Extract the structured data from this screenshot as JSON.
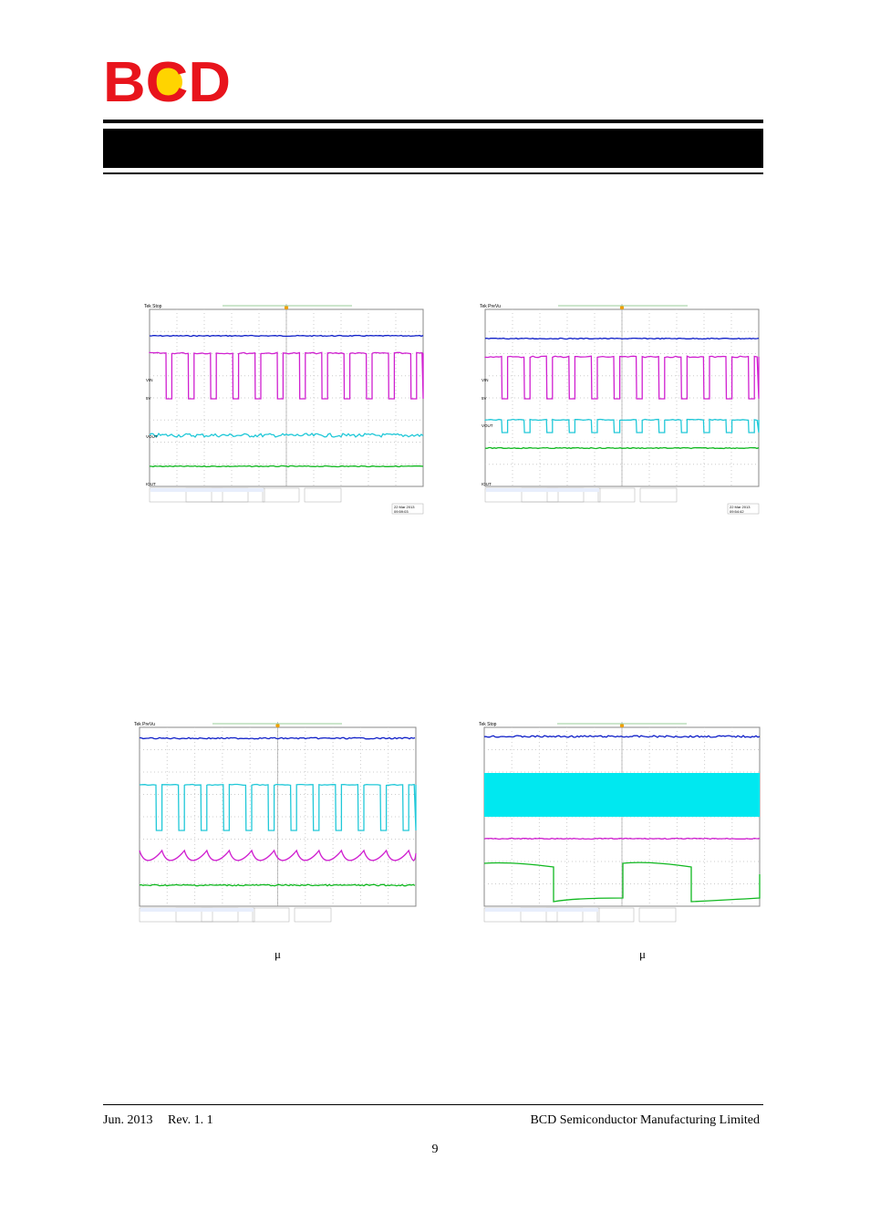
{
  "header": {
    "logo": "BCD"
  },
  "figures": [
    {
      "title": "Tek Stop",
      "channels": [
        "VIN",
        "5V",
        "VOUT",
        "IOUT"
      ],
      "date": "22 Mar 2013",
      "time": "09:59:03"
    },
    {
      "title": "Tek PreVu",
      "channels": [
        "VIN",
        "5V",
        "VOUT",
        "IOUT"
      ],
      "date": "22 Mar 2013",
      "time": "09:54:42"
    },
    {
      "title": "Tek PreVu"
    },
    {
      "title": "Tek Stop"
    }
  ],
  "captions": [
    "μ",
    "μ"
  ],
  "footer": {
    "date": "Jun. 2013",
    "rev": "Rev. 1. 1",
    "company": "BCD Semiconductor Manufacturing Limited",
    "page": "9"
  }
}
